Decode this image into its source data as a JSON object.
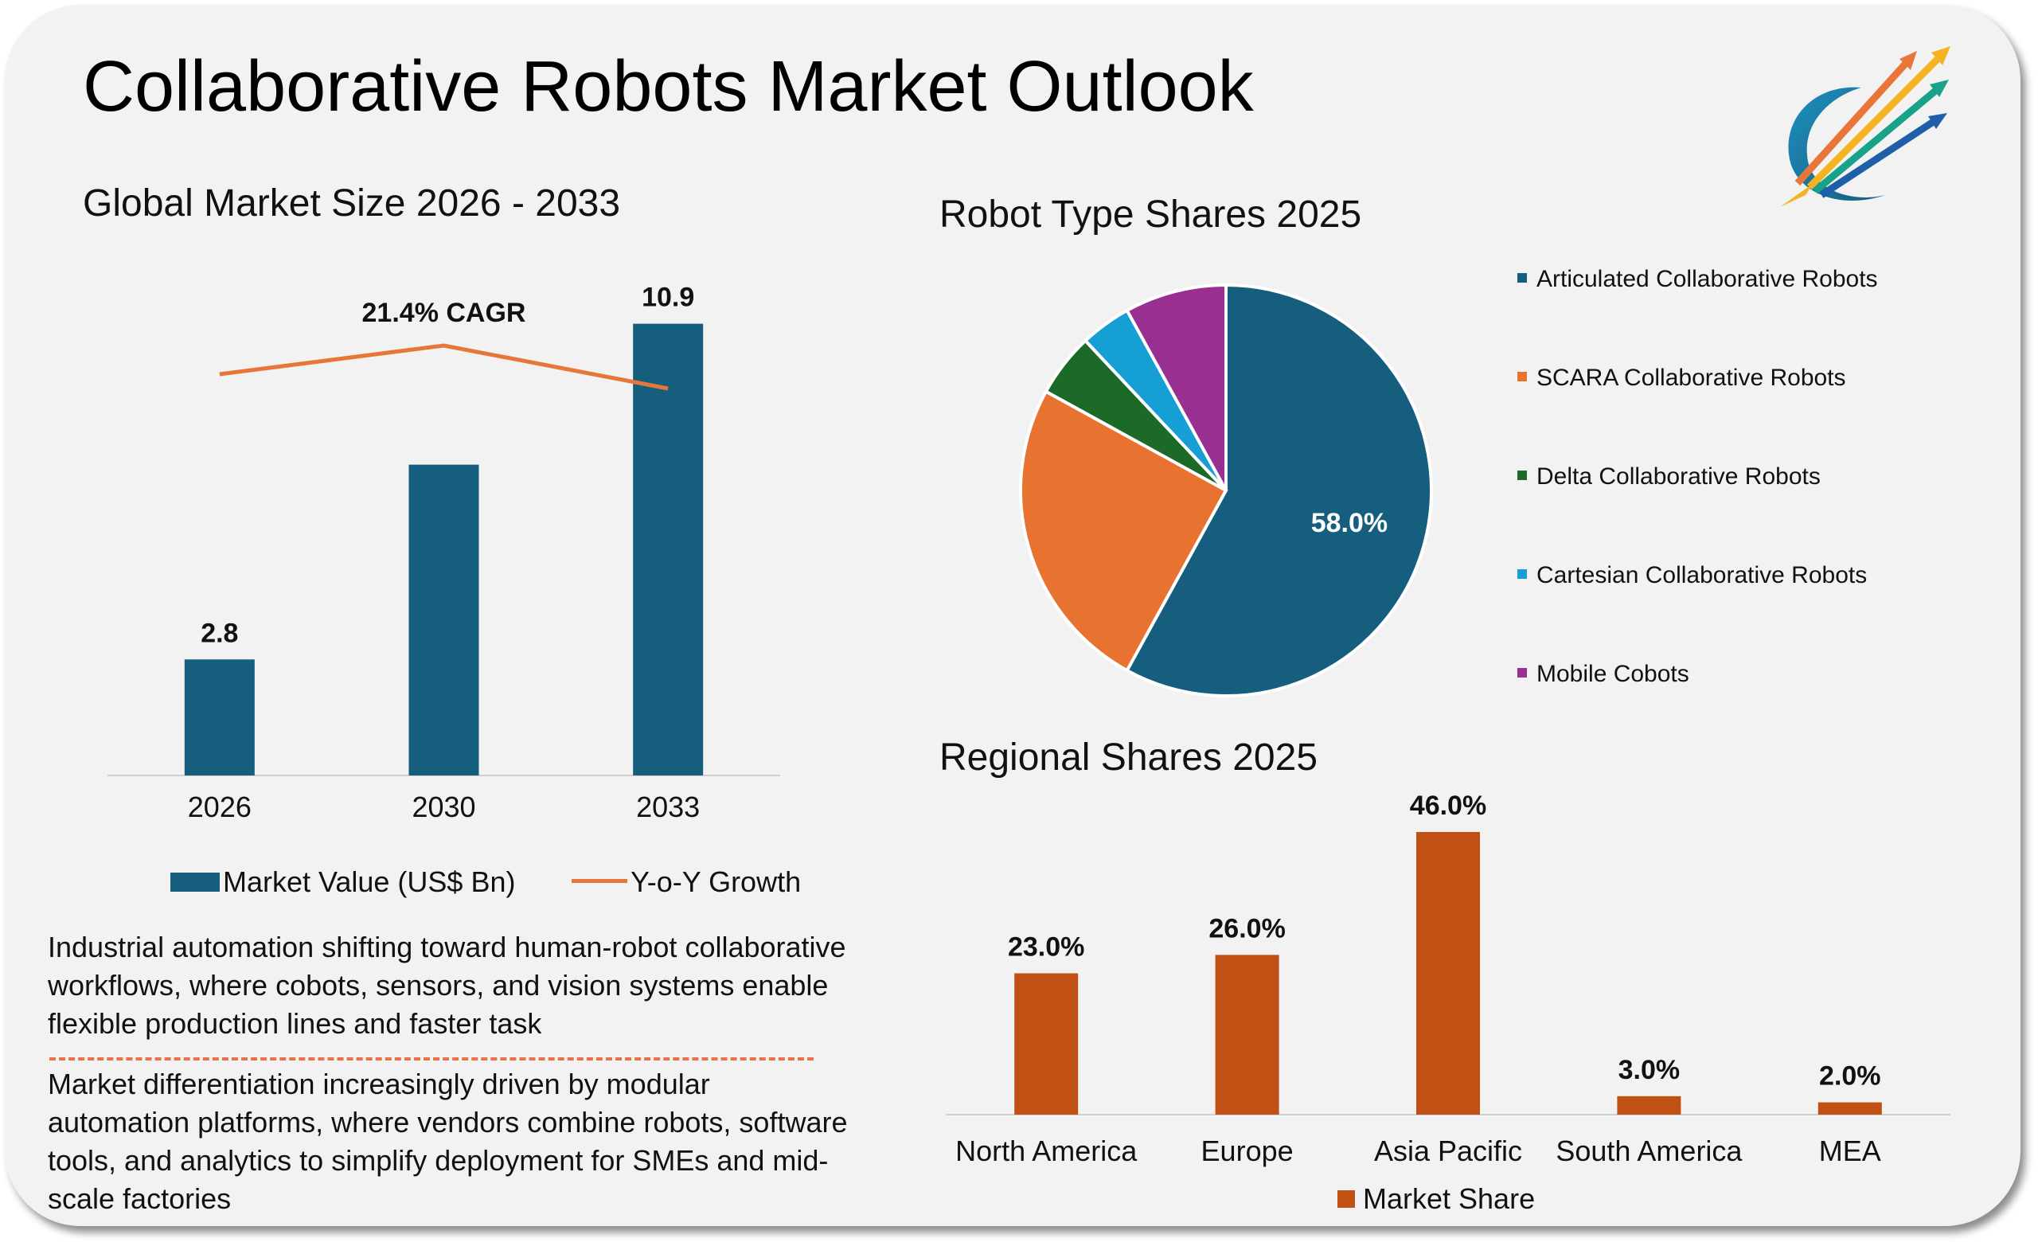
{
  "title": "Collaborative Robots Market Outlook",
  "colors": {
    "market_value": "#155e7e",
    "growth_line": "#e8763b",
    "region_bar": "#c05014"
  },
  "logo": {
    "icon": "rising-arrows-logo-icon"
  },
  "chart_data": [
    {
      "id": "market_size",
      "type": "bar",
      "title": "Global Market Size 2026 - 2033",
      "categories": [
        "2026",
        "2030",
        "2033"
      ],
      "series": [
        {
          "name": "Market Value (US$ Bn)",
          "type": "bar",
          "values": [
            2.8,
            7.5,
            10.9
          ],
          "labels": [
            "2.8",
            "",
            "10.9"
          ]
        },
        {
          "name": "Y-o-Y Growth",
          "type": "line",
          "values": [
            21.0,
            21.4,
            20.8
          ]
        }
      ],
      "annotation": "21.4% CAGR",
      "ylim": [
        0,
        11.7
      ],
      "legend": "bottom"
    },
    {
      "id": "robot_type_shares",
      "type": "pie",
      "title": "Robot Type Shares 2025",
      "labels": [
        "Articulated Collaborative Robots",
        "SCARA Collaborative Robots",
        "Delta Collaborative Robots",
        "Cartesian Collaborative Robots",
        "Mobile Cobots"
      ],
      "values": [
        58.0,
        25.0,
        5.0,
        4.0,
        8.0
      ],
      "colors": [
        "#155e7e",
        "#e87330",
        "#1b6a27",
        "#169fd5",
        "#992f91"
      ],
      "shown_label": "58.0%",
      "legend": "right"
    },
    {
      "id": "regional_shares",
      "type": "bar",
      "title": "Regional Shares 2025",
      "categories": [
        "North America",
        "Europe",
        "Asia Pacific",
        "South America",
        "MEA"
      ],
      "series": [
        {
          "name": "Market Share",
          "values": [
            23.0,
            26.0,
            46.0,
            3.0,
            2.0
          ],
          "labels": [
            "23.0%",
            "26.0%",
            "46.0%",
            "3.0%",
            "2.0%"
          ]
        }
      ],
      "ylim": [
        0,
        46
      ],
      "legend": "bottom"
    }
  ],
  "insights": [
    "Industrial automation shifting toward human-robot collaborative workflows, where cobots, sensors, and vision systems enable flexible production lines and faster task",
    "Market differentiation increasingly driven by modular automation platforms, where vendors combine robots, software tools, and analytics to simplify deployment for SMEs and mid-scale factories"
  ]
}
